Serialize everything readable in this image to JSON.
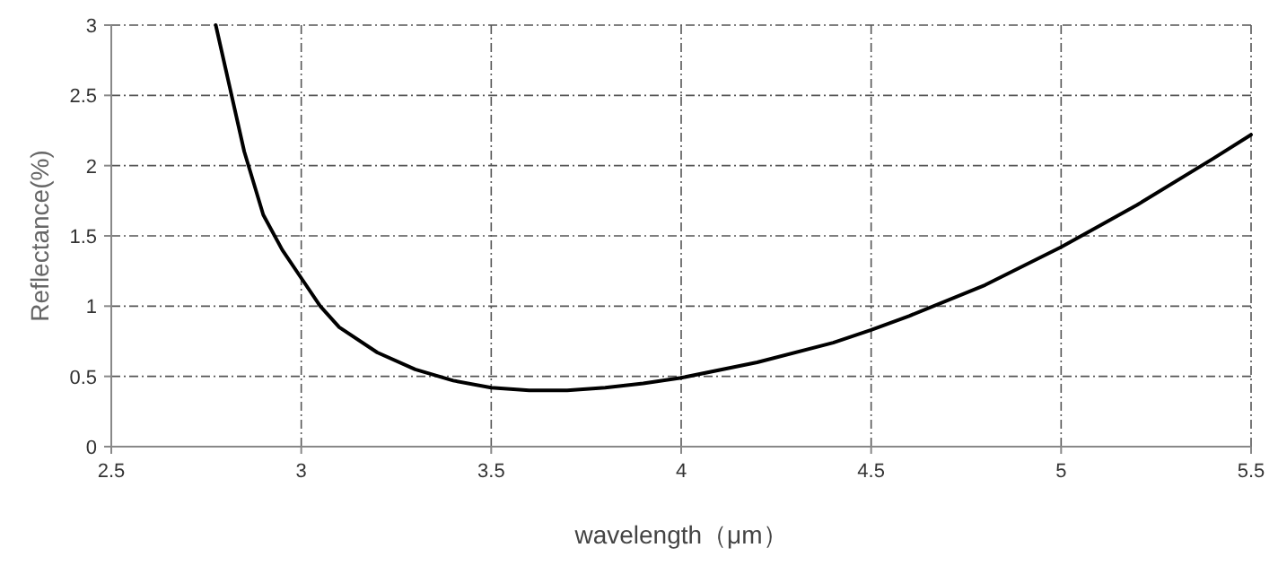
{
  "chart_data": {
    "type": "line",
    "xlabel": "wavelength（μm）",
    "ylabel": "Reflectance(%)",
    "x": [
      2.775,
      2.8,
      2.85,
      2.9,
      2.95,
      3.0,
      3.05,
      3.1,
      3.2,
      3.3,
      3.4,
      3.5,
      3.6,
      3.7,
      3.8,
      3.9,
      4.0,
      4.2,
      4.4,
      4.5,
      4.6,
      4.8,
      5.0,
      5.2,
      5.4,
      5.5
    ],
    "series": [
      {
        "color": "#000000",
        "values": [
          3.0,
          2.7,
          2.1,
          1.65,
          1.4,
          1.2,
          1.0,
          0.85,
          0.67,
          0.55,
          0.47,
          0.42,
          0.4,
          0.4,
          0.42,
          0.45,
          0.49,
          0.6,
          0.74,
          0.83,
          0.93,
          1.15,
          1.42,
          1.72,
          2.05,
          2.22
        ]
      }
    ],
    "xlim": [
      2.5,
      5.5
    ],
    "ylim": [
      0,
      3
    ],
    "xticks": [
      2.5,
      3,
      3.5,
      4,
      4.5,
      5,
      5.5
    ],
    "yticks": [
      0,
      0.5,
      1,
      1.5,
      2,
      2.5,
      3
    ],
    "grid": true
  }
}
